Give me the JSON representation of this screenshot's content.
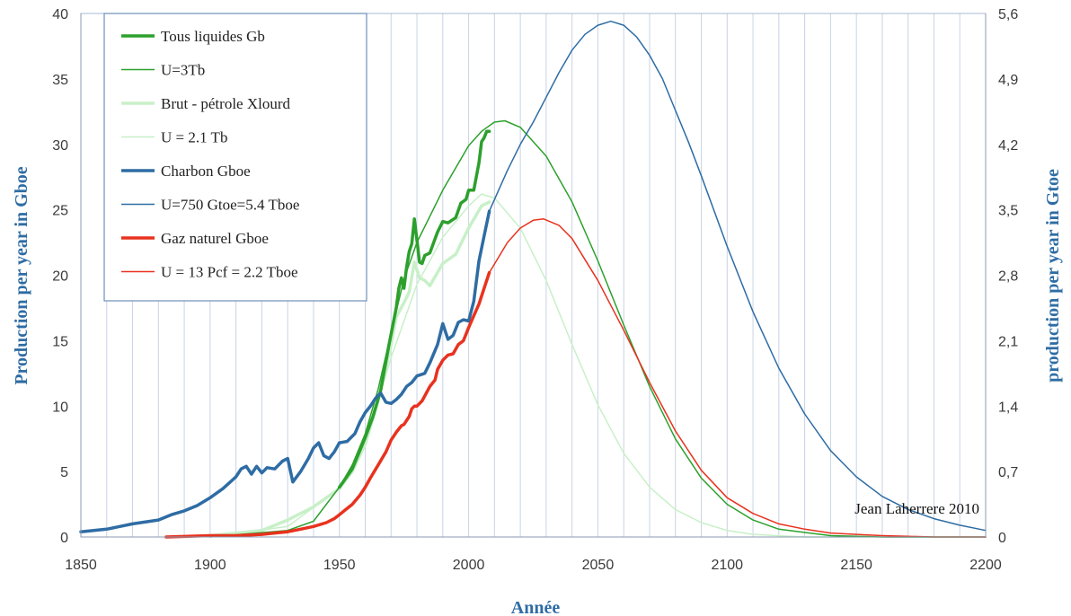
{
  "chart_data": {
    "type": "line",
    "xlabel": "Année",
    "ylabel": "Production per year in Gboe",
    "y2label": "production per year in Gtoe",
    "xlim": [
      1850,
      2200
    ],
    "ylim": [
      0,
      40
    ],
    "y2lim": [
      0,
      5.6
    ],
    "x_ticks": [
      "1850",
      "1900",
      "1950",
      "2000",
      "2050",
      "2100",
      "2150",
      "2200"
    ],
    "y_ticks": [
      "0",
      "5",
      "10",
      "15",
      "20",
      "25",
      "30",
      "35",
      "40"
    ],
    "y2_ticks": [
      "0",
      "0,7",
      "1,4",
      "2,1",
      "2,8",
      "3,5",
      "4,2",
      "4,9",
      "5,6"
    ],
    "grid": "vertical",
    "annotation": "Jean Laherrere 2010",
    "legend_position": "top-left",
    "colors": {
      "liquids": "#2ca02c",
      "crude": "#c8f0c8",
      "coal": "#2e6ca4",
      "gas": "#e8321e",
      "axis_title": "#2e6ca4"
    },
    "legend": [
      {
        "label": "Tous liquides Gb",
        "color": "#2ca02c",
        "width": 3.5
      },
      {
        "label": "U=3Tb",
        "color": "#2ca02c",
        "width": 1.5
      },
      {
        "label": "Brut - pétrole Xlourd",
        "color": "#c8f0c8",
        "width": 3.5
      },
      {
        "label": "U = 2.1 Tb",
        "color": "#c8f0c8",
        "width": 1.5
      },
      {
        "label": "Charbon Gboe",
        "color": "#2e6ca4",
        "width": 3.5
      },
      {
        "label": "U=750 Gtoe=5.4 Tboe",
        "color": "#2e6ca4",
        "width": 1.5
      },
      {
        "label": "Gaz naturel Gboe",
        "color": "#e8321e",
        "width": 3.5
      },
      {
        "label": "U = 13 Pcf = 2.2 Tboe",
        "color": "#e8321e",
        "width": 1.5
      }
    ],
    "series": [
      {
        "name": "Tous liquides Gb",
        "color": "#2ca02c",
        "width": 3.5,
        "x": [
          1950,
          1955,
          1960,
          1963,
          1966,
          1969,
          1972,
          1973,
          1974,
          1975,
          1976,
          1977,
          1978,
          1979,
          1980,
          1981,
          1982,
          1983,
          1985,
          1988,
          1990,
          1992,
          1995,
          1997,
          1999,
          2000,
          2002,
          2004,
          2005,
          2006,
          2007,
          2008
        ],
        "y": [
          3.8,
          5.2,
          7.6,
          9.2,
          11.2,
          14.5,
          17.5,
          19.0,
          19.8,
          19.0,
          20.6,
          21.8,
          22.4,
          24.3,
          22.7,
          21.0,
          20.9,
          21.5,
          21.7,
          23.3,
          24.1,
          24.0,
          24.4,
          25.5,
          25.8,
          26.5,
          26.5,
          28.6,
          30.2,
          30.5,
          31.0,
          31.0
        ]
      },
      {
        "name": "U=3Tb",
        "color": "#2ca02c",
        "width": 1.5,
        "x": [
          1900,
          1930,
          1940,
          1950,
          1955,
          1960,
          1965,
          1970,
          1975,
          1980,
          1990,
          2000,
          2005,
          2010,
          2014,
          2020,
          2030,
          2040,
          2050,
          2060,
          2070,
          2080,
          2090,
          2100,
          2110,
          2120,
          2140,
          2160,
          2200
        ],
        "y": [
          0.0,
          0.5,
          1.2,
          3.8,
          5.5,
          7.9,
          11.3,
          15.6,
          19.7,
          22.5,
          26.5,
          29.9,
          31.0,
          31.7,
          31.8,
          31.3,
          29.1,
          25.6,
          21.1,
          16.2,
          11.5,
          7.5,
          4.5,
          2.5,
          1.3,
          0.6,
          0.1,
          0.0,
          0.0
        ]
      },
      {
        "name": "Brut - pétrole Xlourd",
        "color": "#c8f0c8",
        "width": 3.5,
        "x": [
          1900,
          1920,
          1930,
          1940,
          1950,
          1955,
          1960,
          1965,
          1970,
          1972,
          1975,
          1977,
          1979,
          1981,
          1983,
          1985,
          1990,
          1995,
          2000,
          2005,
          2008
        ],
        "y": [
          0.1,
          0.5,
          1.3,
          2.3,
          3.7,
          5.0,
          7.1,
          10.4,
          14.7,
          16.8,
          17.9,
          18.7,
          21.0,
          19.8,
          19.6,
          19.2,
          20.9,
          21.6,
          23.6,
          25.3,
          25.6
        ]
      },
      {
        "name": "U = 2.1 Tb",
        "color": "#c8f0c8",
        "width": 1.5,
        "x": [
          1900,
          1930,
          1950,
          1960,
          1970,
          1980,
          1990,
          2000,
          2005,
          2010,
          2020,
          2030,
          2040,
          2050,
          2060,
          2070,
          2080,
          2090,
          2100,
          2110,
          2130,
          2150,
          2200
        ],
        "y": [
          0.0,
          0.8,
          3.7,
          7.1,
          13.7,
          19.3,
          22.9,
          25.3,
          26.2,
          25.9,
          23.6,
          19.6,
          14.7,
          10.1,
          6.4,
          3.8,
          2.1,
          1.1,
          0.5,
          0.2,
          0.0,
          0.0,
          0.0
        ]
      },
      {
        "name": "Charbon Gboe",
        "color": "#2e6ca4",
        "width": 3.5,
        "x": [
          1850,
          1860,
          1870,
          1880,
          1885,
          1890,
          1895,
          1900,
          1905,
          1910,
          1912,
          1914,
          1916,
          1918,
          1920,
          1922,
          1925,
          1928,
          1930,
          1932,
          1935,
          1938,
          1940,
          1942,
          1944,
          1946,
          1948,
          1950,
          1953,
          1956,
          1958,
          1960,
          1962,
          1964,
          1966,
          1968,
          1970,
          1972,
          1974,
          1976,
          1978,
          1980,
          1983,
          1985,
          1988,
          1990,
          1992,
          1994,
          1996,
          1998,
          2000,
          2002,
          2004,
          2006,
          2008
        ],
        "y": [
          0.4,
          0.6,
          1.0,
          1.3,
          1.7,
          2.0,
          2.4,
          3.0,
          3.7,
          4.6,
          5.2,
          5.4,
          4.8,
          5.4,
          4.9,
          5.3,
          5.2,
          5.8,
          6.0,
          4.2,
          5.0,
          6.0,
          6.8,
          7.2,
          6.2,
          6.0,
          6.5,
          7.2,
          7.3,
          7.9,
          8.8,
          9.5,
          10.0,
          10.6,
          11.0,
          10.3,
          10.2,
          10.5,
          10.9,
          11.5,
          11.8,
          12.3,
          12.5,
          13.3,
          14.7,
          16.3,
          15.1,
          15.4,
          16.4,
          16.6,
          16.5,
          18.0,
          21.1,
          23.0,
          24.9
        ]
      },
      {
        "name": "U=750 Gtoe=5.4 Tboe",
        "color": "#2e6ca4",
        "width": 1.5,
        "x": [
          2008,
          2015,
          2020,
          2025,
          2030,
          2035,
          2040,
          2045,
          2050,
          2055,
          2060,
          2065,
          2070,
          2075,
          2080,
          2085,
          2090,
          2100,
          2110,
          2120,
          2130,
          2140,
          2150,
          2160,
          2170,
          2180,
          2190,
          2200
        ],
        "y": [
          24.9,
          28.0,
          30.0,
          31.7,
          33.6,
          35.5,
          37.2,
          38.4,
          39.1,
          39.4,
          39.1,
          38.2,
          36.8,
          35.0,
          32.6,
          30.2,
          27.6,
          22.2,
          17.2,
          12.9,
          9.4,
          6.6,
          4.6,
          3.1,
          2.1,
          1.4,
          0.9,
          0.5
        ]
      },
      {
        "name": "Gaz naturel Gboe",
        "color": "#e8321e",
        "width": 3.5,
        "x": [
          1883,
          1900,
          1910,
          1920,
          1925,
          1930,
          1935,
          1940,
          1945,
          1948,
          1950,
          1955,
          1958,
          1960,
          1962,
          1965,
          1968,
          1970,
          1972,
          1974,
          1975,
          1977,
          1978,
          1979,
          1980,
          1982,
          1985,
          1987,
          1988,
          1990,
          1992,
          1994,
          1996,
          1998,
          2000,
          2002,
          2004,
          2006,
          2008
        ],
        "y": [
          0.0,
          0.1,
          0.1,
          0.2,
          0.3,
          0.4,
          0.6,
          0.8,
          1.1,
          1.4,
          1.7,
          2.5,
          3.2,
          3.8,
          4.5,
          5.5,
          6.5,
          7.4,
          8.0,
          8.5,
          8.6,
          9.2,
          9.8,
          10.0,
          10.0,
          10.4,
          11.5,
          12.0,
          12.8,
          13.5,
          13.9,
          14.0,
          14.7,
          15.0,
          16.0,
          16.9,
          17.8,
          19.0,
          20.2
        ]
      },
      {
        "name": "U = 13 Pcf = 2.2 Tboe",
        "color": "#e8321e",
        "width": 1.5,
        "x": [
          2008,
          2015,
          2020,
          2025,
          2029,
          2035,
          2040,
          2050,
          2060,
          2070,
          2080,
          2090,
          2100,
          2110,
          2120,
          2130,
          2140,
          2150,
          2160,
          2170,
          2180,
          2200
        ],
        "y": [
          20.2,
          22.5,
          23.6,
          24.2,
          24.3,
          23.8,
          22.8,
          19.6,
          15.8,
          11.8,
          8.1,
          5.1,
          3.0,
          1.8,
          1.0,
          0.6,
          0.3,
          0.2,
          0.1,
          0.05,
          0.0,
          0.0
        ]
      }
    ]
  }
}
